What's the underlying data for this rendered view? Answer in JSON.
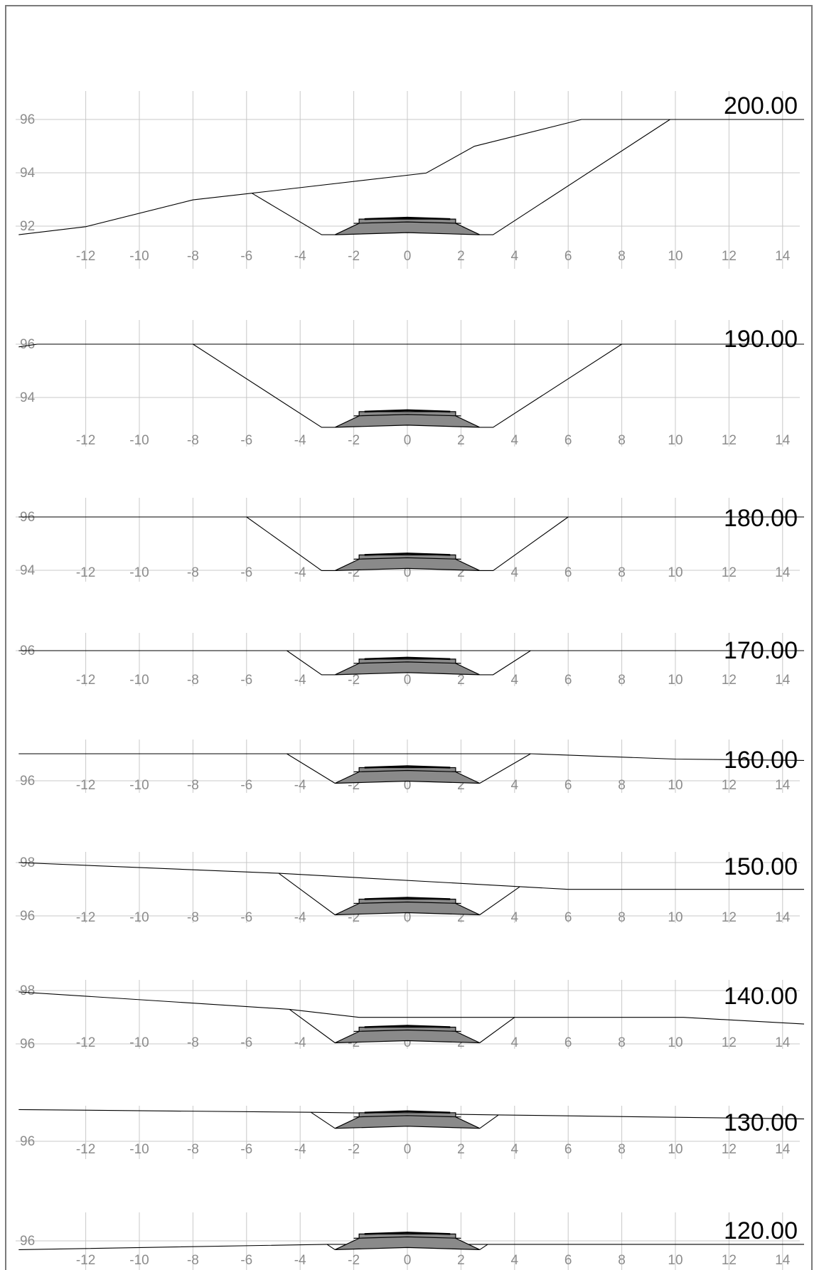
{
  "colors": {
    "frame": "#7a7a7a",
    "grid": "#c8c8c8",
    "tick_label": "#8c8c8c",
    "line": "#000000",
    "pavement_fill": "#8a8a8a"
  },
  "x_ticks": [
    "-12",
    "-10",
    "-8",
    "-6",
    "-4",
    "-2",
    "0",
    "2",
    "4",
    "6",
    "8",
    "10",
    "12",
    "14"
  ],
  "sections": [
    {
      "station": "200.00",
      "elev_labels": [
        "96",
        "94",
        "92"
      ],
      "ground": [
        [
          -14.5,
          91.7
        ],
        [
          -12,
          92.0
        ],
        [
          -8,
          93.0
        ],
        [
          -5.8,
          93.25
        ],
        [
          0.7,
          94.0
        ],
        [
          2.5,
          95.0
        ],
        [
          6.5,
          96.0
        ],
        [
          9.8,
          96.0
        ],
        [
          14.8,
          96.0
        ]
      ],
      "cut_left": [
        [
          -5.8,
          93.25
        ],
        [
          -3.2,
          91.7
        ],
        [
          -2.7,
          91.7
        ]
      ],
      "cut_right": [
        [
          2.7,
          91.7
        ],
        [
          3.2,
          91.7
        ],
        [
          9.8,
          96.0
        ]
      ],
      "pavement_base": 91.7
    },
    {
      "station": "190.00",
      "elev_labels": [
        "96",
        "94"
      ],
      "ground": [
        [
          -14.5,
          95.9
        ],
        [
          -13.8,
          96.0
        ],
        [
          14.8,
          96.0
        ]
      ],
      "cut_left": [
        [
          -8,
          96.0
        ],
        [
          -3.2,
          92.9
        ],
        [
          -2.7,
          92.9
        ]
      ],
      "cut_right": [
        [
          2.7,
          92.9
        ],
        [
          3.2,
          92.9
        ],
        [
          8,
          96.0
        ]
      ],
      "pavement_base": 92.9
    },
    {
      "station": "180.00",
      "elev_labels": [
        "96",
        "94"
      ],
      "ground": [
        [
          -14.5,
          96.0
        ],
        [
          14.8,
          96.0
        ]
      ],
      "cut_left": [
        [
          -6,
          96.0
        ],
        [
          -3.2,
          94.0
        ],
        [
          -2.7,
          94.0
        ]
      ],
      "cut_right": [
        [
          2.7,
          94.0
        ],
        [
          3.2,
          94.0
        ],
        [
          6,
          96.0
        ]
      ],
      "pavement_base": 94.0
    },
    {
      "station": "170.00",
      "elev_labels": [
        "96"
      ],
      "ground": [
        [
          -14.5,
          96.0
        ],
        [
          14.8,
          96.0
        ]
      ],
      "cut_left": [
        [
          -4.5,
          96.0
        ],
        [
          -3.2,
          95.1
        ],
        [
          -2.7,
          95.1
        ]
      ],
      "cut_right": [
        [
          2.7,
          95.1
        ],
        [
          3.2,
          95.1
        ],
        [
          4.6,
          96.0
        ]
      ],
      "pavement_base": 95.1
    },
    {
      "station": "160.00",
      "elev_labels": [
        "96"
      ],
      "ground": [
        [
          -14.5,
          97.0
        ],
        [
          -4.5,
          97.0
        ],
        [
          4.6,
          97.0
        ],
        [
          10,
          96.8
        ],
        [
          14.8,
          96.75
        ]
      ],
      "cut_left": [
        [
          -4.5,
          97.0
        ],
        [
          -2.7,
          95.9
        ]
      ],
      "cut_right": [
        [
          2.7,
          95.9
        ],
        [
          4.6,
          97.0
        ]
      ],
      "pavement_base": 95.9
    },
    {
      "station": "150.00",
      "elev_labels": [
        "98",
        "96"
      ],
      "ground": [
        [
          -14.5,
          98.0
        ],
        [
          -4.8,
          97.6
        ],
        [
          4.2,
          97.1
        ],
        [
          6,
          97.0
        ],
        [
          14.8,
          97.0
        ]
      ],
      "cut_left": [
        [
          -4.8,
          97.6
        ],
        [
          -2.7,
          96.05
        ]
      ],
      "cut_right": [
        [
          2.7,
          96.05
        ],
        [
          4.2,
          97.1
        ]
      ],
      "pavement_base": 96.05
    },
    {
      "station": "140.00",
      "elev_labels": [
        "98",
        "96"
      ],
      "ground": [
        [
          -14.5,
          97.95
        ],
        [
          -4.4,
          97.3
        ],
        [
          -1.8,
          97.0
        ],
        [
          10.3,
          97.0
        ],
        [
          14.8,
          96.75
        ]
      ],
      "cut_left": [
        [
          -4.4,
          97.3
        ],
        [
          -2.7,
          96.05
        ]
      ],
      "cut_right": [
        [
          2.7,
          96.05
        ],
        [
          4.0,
          97.0
        ]
      ],
      "pavement_base": 96.05
    },
    {
      "station": "130.00",
      "elev_labels": [
        "96"
      ],
      "ground": [
        [
          -14.5,
          96.6
        ],
        [
          -3.6,
          96.5
        ],
        [
          3.4,
          96.4
        ],
        [
          14.8,
          96.25
        ]
      ],
      "cut_left": [
        [
          -3.6,
          96.5
        ],
        [
          -2.7,
          95.9
        ]
      ],
      "cut_right": [
        [
          2.7,
          95.9
        ],
        [
          3.4,
          96.4
        ]
      ],
      "pavement_base": 95.9
    },
    {
      "station": "120.00",
      "elev_labels": [
        "96"
      ],
      "ground": [
        [
          -14.5,
          95.75
        ],
        [
          -3.0,
          95.95
        ],
        [
          3.0,
          95.95
        ],
        [
          14.8,
          95.95
        ]
      ],
      "cut_left": [
        [
          -3.0,
          95.95
        ],
        [
          -2.7,
          95.75
        ]
      ],
      "cut_right": [
        [
          2.7,
          95.75
        ],
        [
          3.0,
          95.95
        ]
      ],
      "pavement_base": 95.75
    }
  ]
}
